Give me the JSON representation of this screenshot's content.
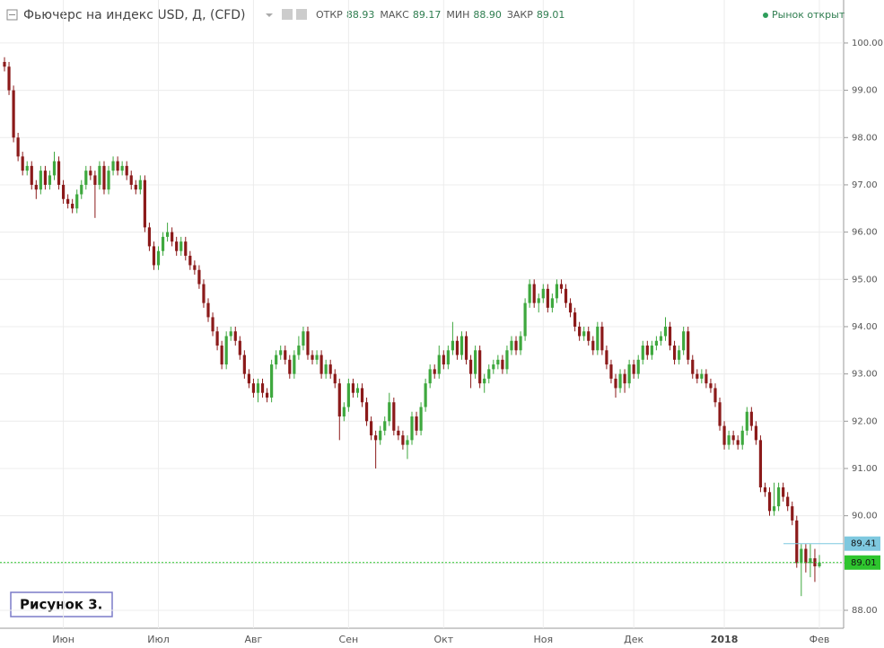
{
  "header": {
    "title": "Фьючерс на индекс USD, Д, (CFD)",
    "stats": [
      {
        "label": "ОТКР",
        "value": "88.93"
      },
      {
        "label": "МАКС",
        "value": "89.17"
      },
      {
        "label": "МИН",
        "value": "88.90"
      },
      {
        "label": "ЗАКР",
        "value": "89.01"
      }
    ],
    "status": "Рынок открыт"
  },
  "annotation": "Рисунок 3.",
  "chart_data": {
    "type": "candlestick",
    "up_color": "#3ea83e",
    "down_color": "#8b1a1a",
    "grid": true,
    "categories": [
      null,
      null,
      null,
      null,
      null,
      null,
      null,
      null,
      null,
      null,
      null,
      null,
      null,
      "Июн",
      null,
      null,
      null,
      null,
      null,
      null,
      null,
      null,
      null,
      null,
      null,
      null,
      null,
      null,
      null,
      null,
      null,
      null,
      null,
      null,
      "Июл",
      null,
      null,
      null,
      null,
      null,
      null,
      null,
      null,
      null,
      null,
      null,
      null,
      null,
      null,
      null,
      null,
      null,
      null,
      null,
      null,
      "Авг",
      null,
      null,
      null,
      null,
      null,
      null,
      null,
      null,
      null,
      null,
      null,
      null,
      null,
      null,
      null,
      null,
      null,
      null,
      null,
      null,
      "Сен",
      null,
      null,
      null,
      null,
      null,
      null,
      null,
      null,
      null,
      null,
      null,
      null,
      null,
      null,
      null,
      null,
      null,
      null,
      null,
      null,
      "Окт",
      null,
      null,
      null,
      null,
      null,
      null,
      null,
      null,
      null,
      null,
      null,
      null,
      null,
      null,
      null,
      null,
      null,
      null,
      null,
      null,
      null,
      "Ноя",
      null,
      null,
      null,
      null,
      null,
      null,
      null,
      null,
      null,
      null,
      null,
      null,
      null,
      null,
      null,
      null,
      null,
      null,
      null,
      "Дек",
      null,
      null,
      null,
      null,
      null,
      null,
      null,
      null,
      null,
      null,
      null,
      null,
      null,
      null,
      null,
      null,
      null,
      null,
      null,
      "2018",
      null,
      null,
      null,
      null,
      null,
      null,
      null,
      null,
      null,
      null,
      null,
      null,
      null,
      null,
      null,
      null,
      null,
      null,
      null,
      null,
      "Фев"
    ],
    "open": [
      99.6,
      99.5,
      99.0,
      98.0,
      97.6,
      97.3,
      97.4,
      97.0,
      96.9,
      97.3,
      97.0,
      97.2,
      97.5,
      97.0,
      96.7,
      96.6,
      96.5,
      96.8,
      97.0,
      97.3,
      97.2,
      97.0,
      97.4,
      96.9,
      97.3,
      97.5,
      97.3,
      97.4,
      97.2,
      97.0,
      96.9,
      97.1,
      96.1,
      95.7,
      95.3,
      95.6,
      95.9,
      96.0,
      95.8,
      95.6,
      95.8,
      95.5,
      95.3,
      95.2,
      94.9,
      94.5,
      94.2,
      93.9,
      93.6,
      93.2,
      93.8,
      93.9,
      93.7,
      93.4,
      93.0,
      92.8,
      92.6,
      92.8,
      92.6,
      92.5,
      93.2,
      93.4,
      93.5,
      93.3,
      93.0,
      93.4,
      93.6,
      93.9,
      93.4,
      93.3,
      93.4,
      93.0,
      93.2,
      93.0,
      92.8,
      92.1,
      92.3,
      92.8,
      92.6,
      92.7,
      92.4,
      92.0,
      91.7,
      91.6,
      91.8,
      92.0,
      92.4,
      91.8,
      91.7,
      91.5,
      91.6,
      92.1,
      91.8,
      92.3,
      92.8,
      93.1,
      93.0,
      93.4,
      93.2,
      93.5,
      93.7,
      93.4,
      93.8,
      93.3,
      93.0,
      93.5,
      92.8,
      92.9,
      93.1,
      93.2,
      93.3,
      93.1,
      93.5,
      93.7,
      93.5,
      93.8,
      94.5,
      94.9,
      94.5,
      94.6,
      94.8,
      94.4,
      94.6,
      94.9,
      94.8,
      94.5,
      94.3,
      94.0,
      93.8,
      93.9,
      93.7,
      93.5,
      94.0,
      93.5,
      93.2,
      92.9,
      92.7,
      93.0,
      92.8,
      93.2,
      93.0,
      93.3,
      93.6,
      93.4,
      93.6,
      93.7,
      93.8,
      94.0,
      93.6,
      93.3,
      93.5,
      93.9,
      93.3,
      93.0,
      92.9,
      93.0,
      92.8,
      92.7,
      92.4,
      91.9,
      91.5,
      91.7,
      91.6,
      91.5,
      91.8,
      92.2,
      91.9,
      91.6,
      90.6,
      90.5,
      90.1,
      90.2,
      90.6,
      90.4,
      90.2,
      89.9,
      89.0,
      89.3,
      89.0,
      89.1,
      88.93
    ],
    "high": [
      99.7,
      99.6,
      99.1,
      98.1,
      97.7,
      97.5,
      97.5,
      97.1,
      97.4,
      97.4,
      97.3,
      97.7,
      97.6,
      97.1,
      96.8,
      96.7,
      96.9,
      97.1,
      97.4,
      97.4,
      97.3,
      97.5,
      97.5,
      97.4,
      97.6,
      97.6,
      97.5,
      97.5,
      97.3,
      97.1,
      97.2,
      97.2,
      96.2,
      95.8,
      95.7,
      96.0,
      96.2,
      96.1,
      95.9,
      95.9,
      95.9,
      95.6,
      95.4,
      95.3,
      95.0,
      94.6,
      94.3,
      94.0,
      93.7,
      93.9,
      94.0,
      94.0,
      93.8,
      93.5,
      93.1,
      92.9,
      92.9,
      92.9,
      92.7,
      93.3,
      93.5,
      93.6,
      93.6,
      93.4,
      93.5,
      93.8,
      94.0,
      94.0,
      93.5,
      93.5,
      93.5,
      93.3,
      93.3,
      93.1,
      92.9,
      92.4,
      92.9,
      92.9,
      92.8,
      92.8,
      92.5,
      92.1,
      91.8,
      91.9,
      92.1,
      92.6,
      92.5,
      91.9,
      91.8,
      91.7,
      92.2,
      92.2,
      92.4,
      92.9,
      93.2,
      93.2,
      93.6,
      93.5,
      93.6,
      94.1,
      93.8,
      93.9,
      93.9,
      93.4,
      93.6,
      93.6,
      93.0,
      93.2,
      93.3,
      93.4,
      93.4,
      93.6,
      93.8,
      93.8,
      93.9,
      94.6,
      95.0,
      95.0,
      94.7,
      94.9,
      94.9,
      94.7,
      95.0,
      95.0,
      94.9,
      94.6,
      94.4,
      94.1,
      94.0,
      94.0,
      93.8,
      94.1,
      94.1,
      93.6,
      93.3,
      93.0,
      93.1,
      93.1,
      93.3,
      93.3,
      93.4,
      93.7,
      93.7,
      93.7,
      93.8,
      93.9,
      94.2,
      94.1,
      93.7,
      93.6,
      94.0,
      94.0,
      93.4,
      93.1,
      93.1,
      93.1,
      92.9,
      92.8,
      92.5,
      92.0,
      91.8,
      91.8,
      91.7,
      91.9,
      92.3,
      92.3,
      92.0,
      91.7,
      90.7,
      90.6,
      90.7,
      90.7,
      90.7,
      90.5,
      90.3,
      90.0,
      89.4,
      89.4,
      89.4,
      89.3,
      89.17
    ],
    "low": [
      99.4,
      98.9,
      97.9,
      97.5,
      97.2,
      97.2,
      96.9,
      96.7,
      96.8,
      96.9,
      96.9,
      97.1,
      96.9,
      96.6,
      96.5,
      96.4,
      96.4,
      96.7,
      96.9,
      97.1,
      96.3,
      96.9,
      96.8,
      96.8,
      97.2,
      97.2,
      97.2,
      97.1,
      96.9,
      96.8,
      96.8,
      96.0,
      95.6,
      95.2,
      95.2,
      95.5,
      95.8,
      95.7,
      95.5,
      95.5,
      95.4,
      95.2,
      95.1,
      94.8,
      94.4,
      94.1,
      93.8,
      93.5,
      93.1,
      93.1,
      93.7,
      93.6,
      93.3,
      92.9,
      92.7,
      92.5,
      92.4,
      92.5,
      92.4,
      92.4,
      93.1,
      93.3,
      93.2,
      92.9,
      92.9,
      93.3,
      93.5,
      93.3,
      93.2,
      93.2,
      92.9,
      92.9,
      92.9,
      92.7,
      91.6,
      92.0,
      92.2,
      92.5,
      92.5,
      92.3,
      91.9,
      91.6,
      91.0,
      91.5,
      91.7,
      91.9,
      91.7,
      91.6,
      91.4,
      91.2,
      91.5,
      91.7,
      91.7,
      92.2,
      92.7,
      92.9,
      92.9,
      93.1,
      93.1,
      93.4,
      93.3,
      93.3,
      93.2,
      92.7,
      92.9,
      92.7,
      92.6,
      92.8,
      93.0,
      93.1,
      93.0,
      93.0,
      93.4,
      93.4,
      93.4,
      93.7,
      94.4,
      94.4,
      94.3,
      94.5,
      94.3,
      94.3,
      94.5,
      94.7,
      94.4,
      94.2,
      93.9,
      93.7,
      93.7,
      93.6,
      93.4,
      93.4,
      93.4,
      93.1,
      92.8,
      92.5,
      92.6,
      92.6,
      92.7,
      92.9,
      92.9,
      93.2,
      93.3,
      93.3,
      93.5,
      93.6,
      93.7,
      93.5,
      93.2,
      93.2,
      93.4,
      93.2,
      92.9,
      92.8,
      92.8,
      92.7,
      92.6,
      92.3,
      91.8,
      91.4,
      91.4,
      91.5,
      91.4,
      91.4,
      91.7,
      91.8,
      91.5,
      90.5,
      90.4,
      90.0,
      90.0,
      90.1,
      90.3,
      90.1,
      89.8,
      88.9,
      88.3,
      88.8,
      88.7,
      88.6,
      88.9
    ],
    "close": [
      99.5,
      99.0,
      98.0,
      97.6,
      97.3,
      97.4,
      97.0,
      96.9,
      97.3,
      97.0,
      97.2,
      97.5,
      97.0,
      96.7,
      96.6,
      96.5,
      96.8,
      97.0,
      97.3,
      97.2,
      97.0,
      97.4,
      96.9,
      97.3,
      97.5,
      97.3,
      97.4,
      97.2,
      97.0,
      96.9,
      97.1,
      96.1,
      95.7,
      95.3,
      95.6,
      95.9,
      96.0,
      95.8,
      95.6,
      95.8,
      95.5,
      95.3,
      95.2,
      94.9,
      94.5,
      94.2,
      93.9,
      93.6,
      93.2,
      93.8,
      93.9,
      93.7,
      93.4,
      93.0,
      92.8,
      92.6,
      92.8,
      92.6,
      92.5,
      93.2,
      93.4,
      93.5,
      93.3,
      93.0,
      93.4,
      93.6,
      93.9,
      93.4,
      93.3,
      93.4,
      93.0,
      93.2,
      93.0,
      92.8,
      92.1,
      92.3,
      92.8,
      92.6,
      92.7,
      92.4,
      92.0,
      91.7,
      91.6,
      91.8,
      92.0,
      92.4,
      91.8,
      91.7,
      91.5,
      91.6,
      92.1,
      91.8,
      92.3,
      92.8,
      93.1,
      93.0,
      93.4,
      93.2,
      93.5,
      93.7,
      93.4,
      93.8,
      93.3,
      93.0,
      93.5,
      92.8,
      92.9,
      93.1,
      93.2,
      93.3,
      93.1,
      93.5,
      93.7,
      93.5,
      93.8,
      94.5,
      94.9,
      94.5,
      94.6,
      94.8,
      94.4,
      94.6,
      94.9,
      94.8,
      94.5,
      94.3,
      94.0,
      93.8,
      93.9,
      93.7,
      93.5,
      94.0,
      93.5,
      93.2,
      92.9,
      92.7,
      93.0,
      92.8,
      93.2,
      93.0,
      93.3,
      93.6,
      93.4,
      93.6,
      93.7,
      93.8,
      94.0,
      93.6,
      93.3,
      93.5,
      93.9,
      93.3,
      93.0,
      92.9,
      93.0,
      92.8,
      92.7,
      92.4,
      91.9,
      91.5,
      91.7,
      91.6,
      91.5,
      91.8,
      92.2,
      91.9,
      91.6,
      90.6,
      90.5,
      90.1,
      90.2,
      90.6,
      90.4,
      90.2,
      89.9,
      89.0,
      89.3,
      89.0,
      89.1,
      88.93,
      89.01
    ],
    "ylim": [
      87.62,
      100.91
    ],
    "yticks": [
      {
        "value": 88,
        "label": "88.00"
      },
      {
        "value": 89,
        "label": "89.00"
      },
      {
        "value": 90,
        "label": "90.00"
      },
      {
        "value": 91,
        "label": "91.00"
      },
      {
        "value": 92,
        "label": "92.00"
      },
      {
        "value": 93,
        "label": "93.00"
      },
      {
        "value": 94,
        "label": "94.00"
      },
      {
        "value": 95,
        "label": "95.00"
      },
      {
        "value": 96,
        "label": "96.00"
      },
      {
        "value": 97,
        "label": "97.00"
      },
      {
        "value": 98,
        "label": "98.00"
      },
      {
        "value": 99,
        "label": "99.00"
      },
      {
        "value": 100,
        "label": "100.00"
      }
    ],
    "price_lines": [
      {
        "value": 89.41,
        "color": "#7ec8df"
      },
      {
        "value": 89.01,
        "color": "#2ec52e"
      }
    ]
  }
}
